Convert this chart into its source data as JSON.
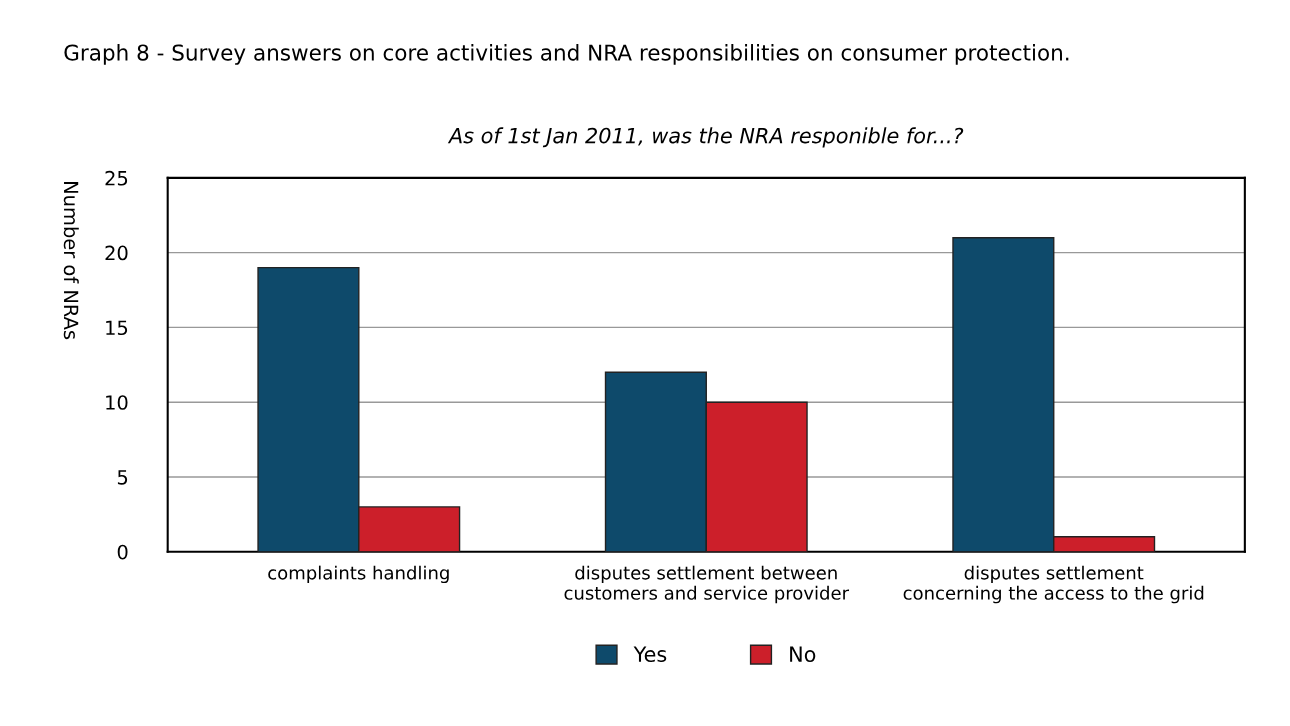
{
  "chart_data": {
    "type": "bar",
    "title": "Graph 8 - Survey answers on core activities and NRA responsibilities on consumer protection.",
    "subtitle": "As of 1st Jan 2011, was the NRA responible for...?",
    "ylabel": "Number of NRAs",
    "categories": [
      "complaints handling",
      "disputes settlement between\ncustomers and service provider",
      "disputes settlement\nconcerning the access to the grid"
    ],
    "series": [
      {
        "name": "Yes",
        "color": "#0e4a6b",
        "values": [
          19,
          12,
          21
        ]
      },
      {
        "name": "No",
        "color": "#cc1f2a",
        "values": [
          3,
          10,
          1
        ]
      }
    ],
    "ylim": [
      0,
      25
    ],
    "yticks": [
      0,
      5,
      10,
      15,
      20,
      25
    ],
    "grid": "y",
    "legend": "bottom"
  }
}
